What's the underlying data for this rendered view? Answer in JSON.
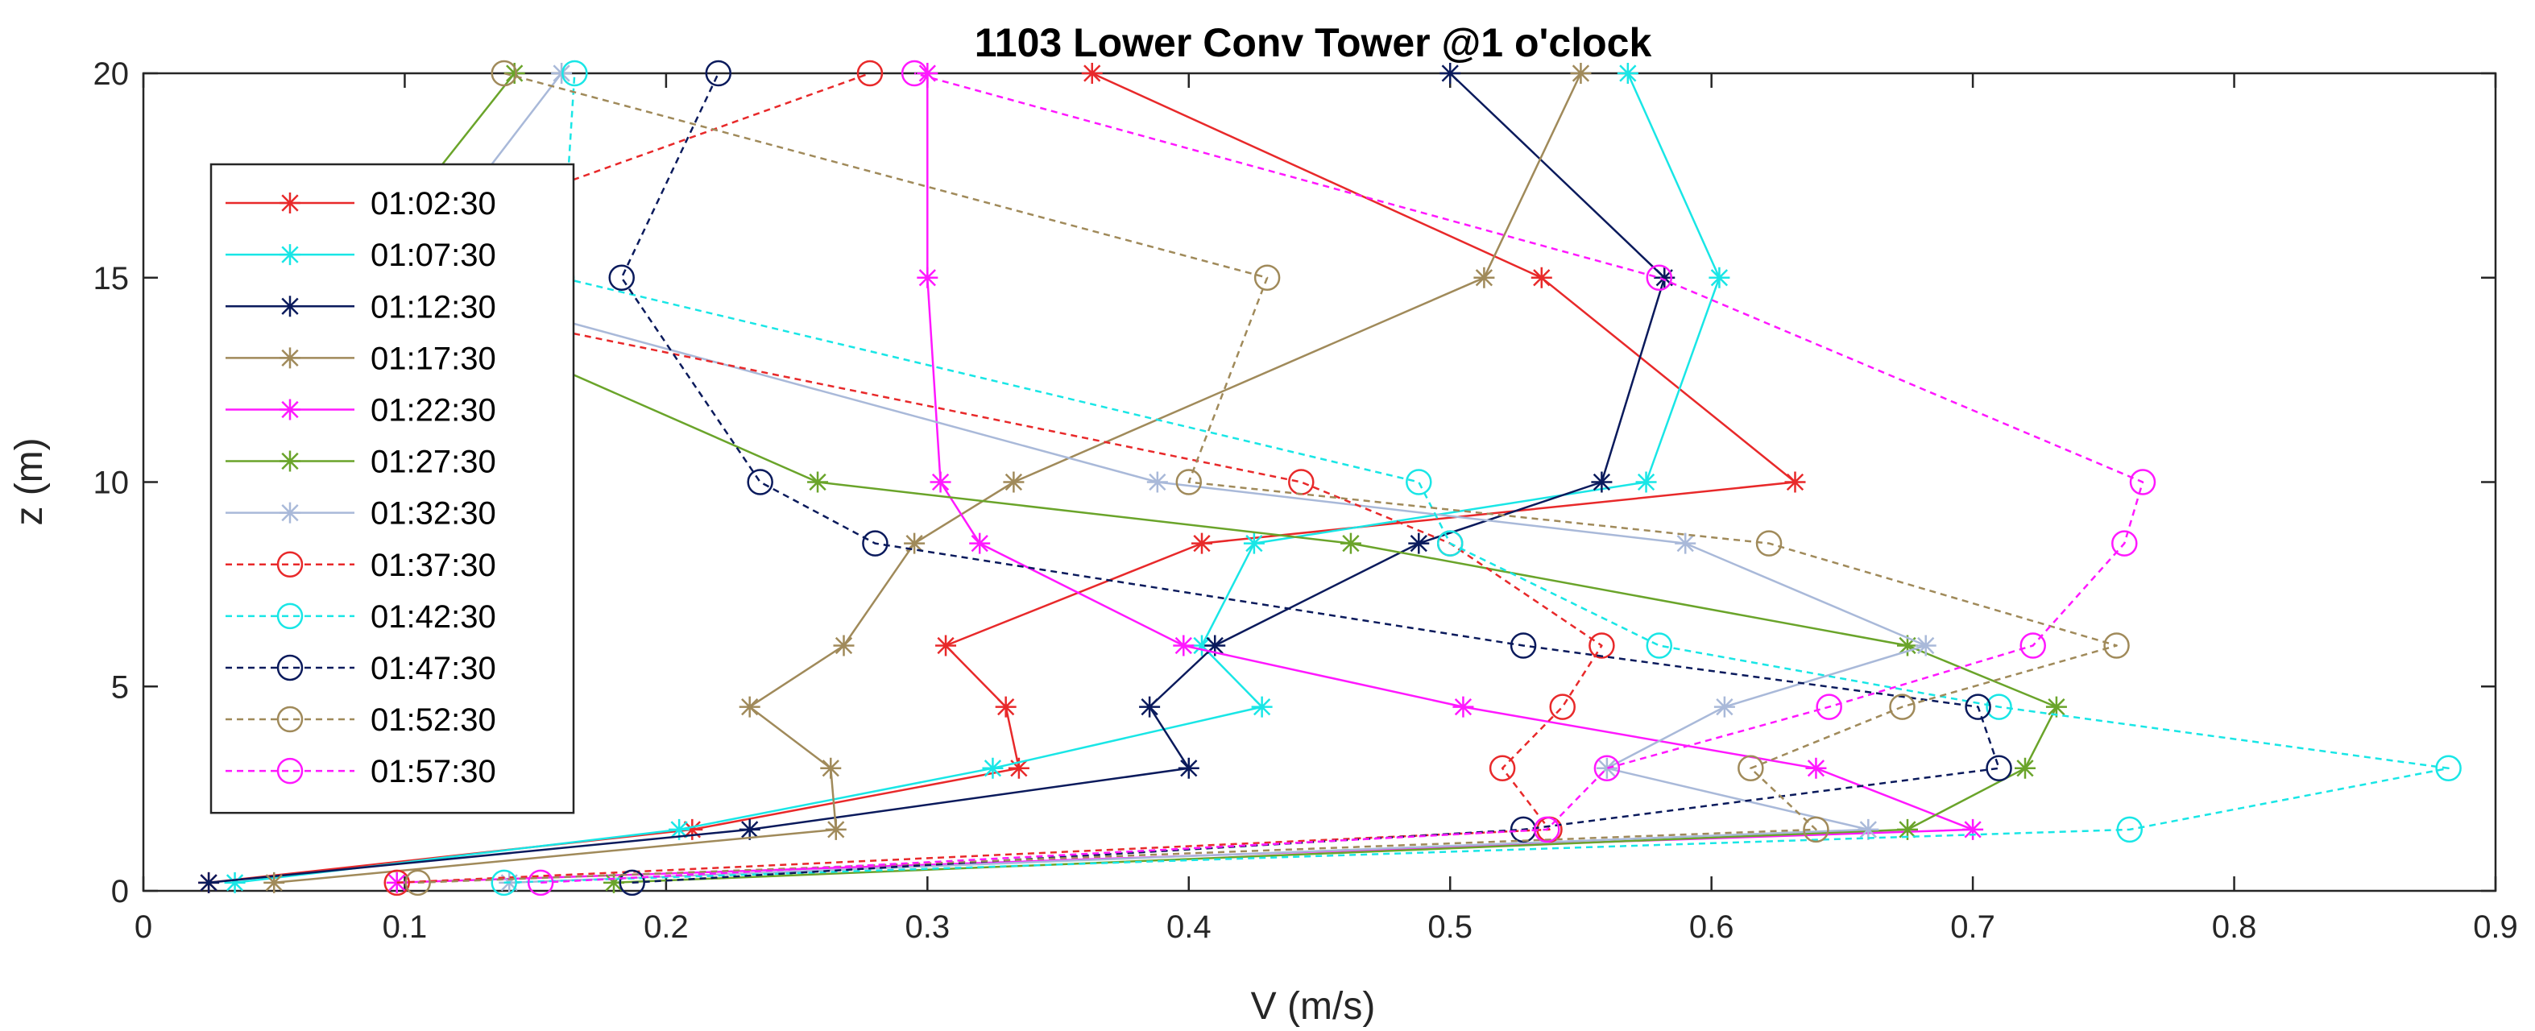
{
  "chart_data": {
    "type": "line",
    "title": "1103 Lower Conv Tower @1 o'clock",
    "xlabel": "V (m/s)",
    "ylabel": "z (m)",
    "xlim": [
      0,
      0.9
    ],
    "ylim": [
      0,
      20
    ],
    "xticks": [
      "0",
      "0.1",
      "0.2",
      "0.3",
      "0.4",
      "0.5",
      "0.6",
      "0.7",
      "0.8",
      "0.9"
    ],
    "yticks": [
      "0",
      "5",
      "10",
      "15",
      "20"
    ],
    "z": [
      0.2,
      1.5,
      3,
      4.5,
      6,
      8.5,
      10,
      15,
      20
    ],
    "legend_position": "upper-left",
    "grid": false,
    "series": [
      {
        "name": "01:02:30",
        "color": "#e8292a",
        "style": "solid",
        "marker": "star",
        "x": [
          0.025,
          0.21,
          0.335,
          0.33,
          0.307,
          0.405,
          0.632,
          0.535,
          0.363
        ]
      },
      {
        "name": "01:07:30",
        "color": "#19e6e6",
        "style": "solid",
        "marker": "star",
        "x": [
          0.035,
          0.205,
          0.325,
          0.428,
          0.405,
          0.425,
          0.575,
          0.603,
          0.568
        ]
      },
      {
        "name": "01:12:30",
        "color": "#0a1a5c",
        "style": "solid",
        "marker": "star",
        "x": [
          0.025,
          0.232,
          0.4,
          0.385,
          0.41,
          0.488,
          0.558,
          0.582,
          0.5
        ]
      },
      {
        "name": "01:17:30",
        "color": "#a08a5a",
        "style": "solid",
        "marker": "star",
        "x": [
          0.05,
          0.265,
          0.263,
          0.232,
          0.268,
          0.295,
          0.333,
          0.513,
          0.55
        ]
      },
      {
        "name": "01:22:30",
        "color": "#ff18ff",
        "style": "solid",
        "marker": "star",
        "x": [
          0.097,
          0.7,
          0.64,
          0.505,
          0.398,
          0.32,
          0.305,
          0.3,
          0.3
        ]
      },
      {
        "name": "01:27:30",
        "color": "#6aa42a",
        "style": "solid",
        "marker": "star",
        "x": [
          0.18,
          0.675,
          0.72,
          0.732,
          0.675,
          0.462,
          0.258,
          0.08,
          0.142
        ]
      },
      {
        "name": "01:32:30",
        "color": "#a9b9d9",
        "style": "solid",
        "marker": "star",
        "x": [
          0.14,
          0.66,
          0.56,
          0.605,
          0.682,
          0.59,
          0.388,
          0.1,
          0.16
        ]
      },
      {
        "name": "01:37:30",
        "color": "#e8292a",
        "style": "dashed",
        "marker": "circle",
        "x": [
          0.097,
          0.538,
          0.52,
          0.543,
          0.558,
          0.5,
          0.443,
          0.06,
          0.278
        ]
      },
      {
        "name": "01:42:30",
        "color": "#19e6e6",
        "style": "dashed",
        "marker": "circle",
        "x": [
          0.138,
          0.76,
          0.882,
          0.71,
          0.58,
          0.5,
          0.488,
          0.16,
          0.165
        ]
      },
      {
        "name": "01:47:30",
        "color": "#0a1a5c",
        "style": "dashed",
        "marker": "circle",
        "x": [
          0.187,
          0.528,
          0.71,
          0.702,
          0.528,
          0.28,
          0.236,
          0.183,
          0.22
        ]
      },
      {
        "name": "01:52:30",
        "color": "#a08a5a",
        "style": "dashed",
        "marker": "circle",
        "x": [
          0.105,
          0.64,
          0.615,
          0.673,
          0.755,
          0.622,
          0.4,
          0.43,
          0.138
        ]
      },
      {
        "name": "01:57:30",
        "color": "#ff18ff",
        "style": "dashed",
        "marker": "circle",
        "x": [
          0.152,
          0.537,
          0.56,
          0.645,
          0.723,
          0.758,
          0.765,
          0.58,
          0.295
        ]
      }
    ]
  }
}
